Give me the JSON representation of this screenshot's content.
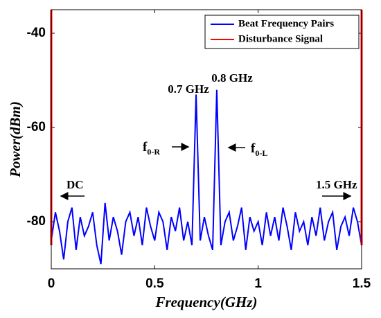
{
  "chart_data": {
    "type": "line",
    "xlabel": "Frequency(GHz)",
    "ylabel": "Power(dBm)",
    "xlim": [
      0,
      1.5
    ],
    "xticks": [
      0,
      0.5,
      1,
      1.5
    ],
    "ylim": [
      -90,
      -35
    ],
    "yticks": [
      -80,
      -60,
      -40
    ],
    "grid": false,
    "legend": "upper right",
    "series": [
      {
        "name": "Beat Frequency Pairs",
        "color": "#0000ff",
        "x": [
          0,
          0.02,
          0.04,
          0.06,
          0.08,
          0.1,
          0.12,
          0.14,
          0.16,
          0.18,
          0.2,
          0.22,
          0.24,
          0.26,
          0.28,
          0.3,
          0.32,
          0.34,
          0.36,
          0.38,
          0.4,
          0.42,
          0.44,
          0.46,
          0.48,
          0.5,
          0.52,
          0.54,
          0.56,
          0.58,
          0.6,
          0.62,
          0.64,
          0.66,
          0.68,
          0.7,
          0.72,
          0.74,
          0.76,
          0.78,
          0.8,
          0.82,
          0.84,
          0.86,
          0.88,
          0.9,
          0.92,
          0.94,
          0.96,
          0.98,
          1,
          1.02,
          1.04,
          1.06,
          1.08,
          1.1,
          1.12,
          1.14,
          1.16,
          1.18,
          1.2,
          1.22,
          1.24,
          1.26,
          1.28,
          1.3,
          1.32,
          1.34,
          1.36,
          1.38,
          1.4,
          1.42,
          1.44,
          1.46,
          1.48,
          1.5
        ],
        "values": [
          -84,
          -78,
          -82,
          -88,
          -80,
          -77,
          -86,
          -79,
          -83,
          -81,
          -78,
          -85,
          -89,
          -76,
          -84,
          -79,
          -82,
          -87,
          -80,
          -78,
          -83,
          -79,
          -85,
          -77,
          -81,
          -84,
          -78,
          -80,
          -86,
          -79,
          -82,
          -77,
          -84,
          -80,
          -85,
          -53,
          -84,
          -79,
          -83,
          -86,
          -52,
          -85,
          -80,
          -78,
          -84,
          -81,
          -77,
          -86,
          -79,
          -82,
          -80,
          -85,
          -78,
          -83,
          -79,
          -84,
          -77,
          -81,
          -86,
          -78,
          -82,
          -80,
          -85,
          -79,
          -83,
          -77,
          -84,
          -80,
          -78,
          -86,
          -81,
          -79,
          -83,
          -77,
          -80,
          -85
        ]
      },
      {
        "name": "Disturbance Signal",
        "color": "#ff0000",
        "x": [
          0,
          0,
          0.75,
          1.5,
          1.5
        ],
        "values": [
          -85,
          -35,
          null,
          -35,
          -85
        ]
      }
    ],
    "annotations": [
      {
        "text": "0.7 GHz"
      },
      {
        "text": "0.8 GHz"
      },
      {
        "text": "f",
        "sub": "0-R"
      },
      {
        "text": "f",
        "sub": "0-L"
      },
      {
        "text": "DC"
      },
      {
        "text": "1.5 GHz"
      }
    ]
  }
}
